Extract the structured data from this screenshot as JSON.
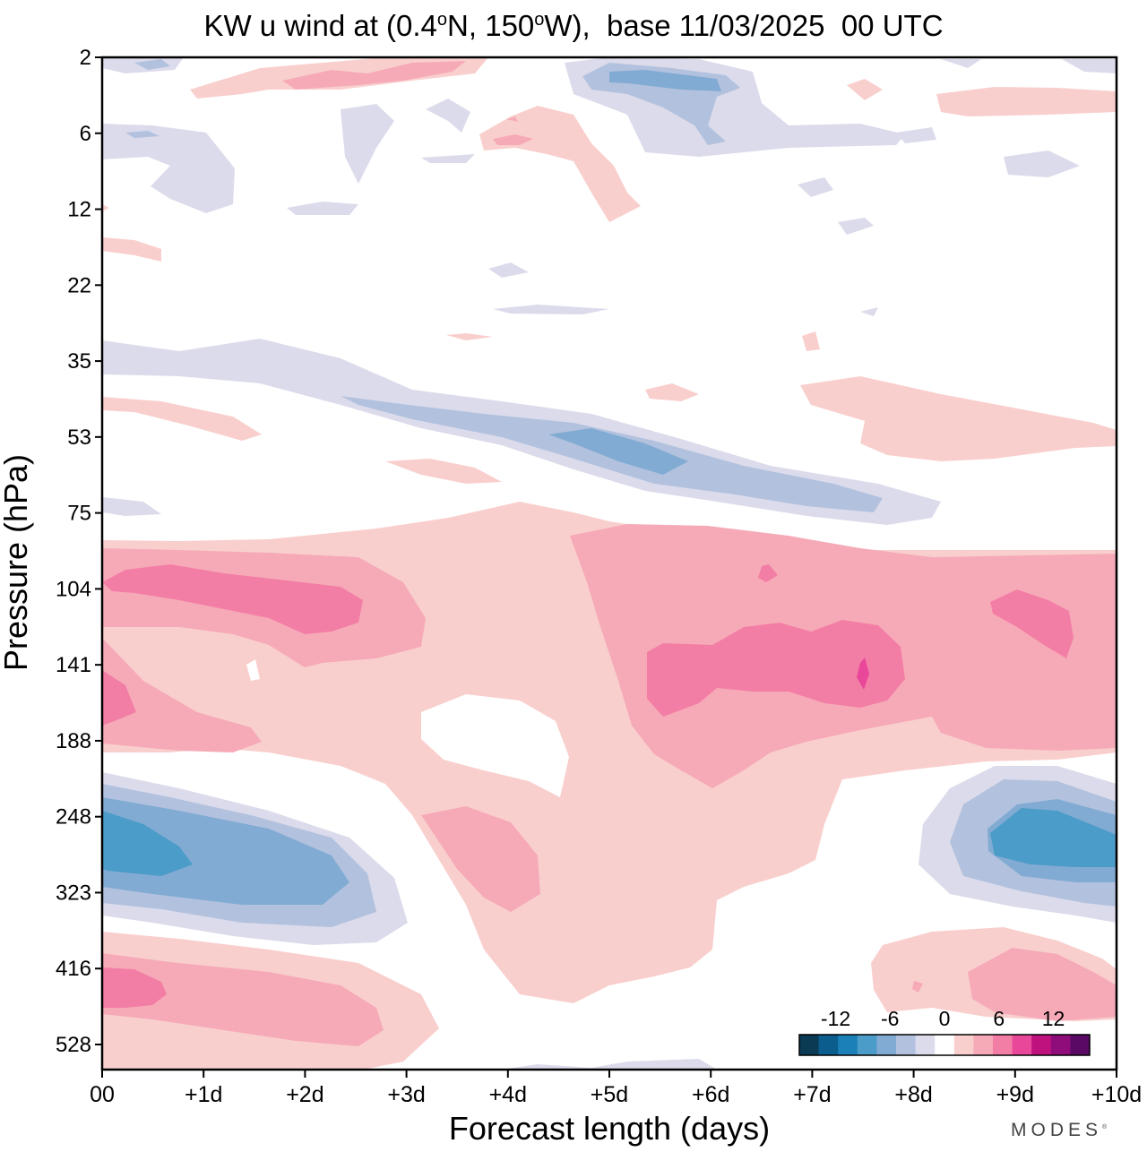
{
  "title": {
    "prefix": "KW u wind at (0.4",
    "deg1": "o",
    "mid": "N, 150",
    "deg2": "o",
    "suffix": "W),  base 11/03/2025  00 UTC"
  },
  "brand": {
    "name": "MODES",
    "mark": "®"
  },
  "chart_data": {
    "type": "heatmap",
    "xlabel": "Forecast length (days)",
    "ylabel": "Pressure (hPa)",
    "x_ticks": [
      "00",
      "+1d",
      "+2d",
      "+3d",
      "+4d",
      "+5d",
      "+6d",
      "+7d",
      "+8d",
      "+9d",
      "+10d"
    ],
    "y_ticks": [
      "2",
      "6",
      "12",
      "22",
      "35",
      "53",
      "75",
      "104",
      "141",
      "188",
      "248",
      "323",
      "416",
      "528"
    ],
    "xlim": [
      0,
      10
    ],
    "grid": false,
    "legend": {
      "position": "bottom-right",
      "tick_labels": [
        "-12",
        "-6",
        "0",
        "6",
        "12"
      ],
      "boundaries": [
        -16,
        -14,
        -12,
        -10,
        -8,
        -6,
        -4,
        -2,
        2,
        4,
        6,
        8,
        10,
        12,
        14,
        16
      ],
      "colors": [
        "#0b3a55",
        "#0a5d8c",
        "#1b80b8",
        "#4b9cc8",
        "#82abd3",
        "#b2c2de",
        "#dcdbeb",
        "#ffffff",
        "#f9cfcd",
        "#f6aab8",
        "#f37ea5",
        "#e8479a",
        "#c0127f",
        "#8f0d7a",
        "#5a0a65"
      ]
    },
    "features": [
      {
        "label": "low-level westerly core",
        "x_days": 0.6,
        "level_hPa": 470,
        "peak_ms": 8
      },
      {
        "label": "upper easterly core",
        "x_days": 0.5,
        "level_hPa": 280,
        "peak_ms": -9
      },
      {
        "label": "upper westerly core",
        "x_days": 1.5,
        "level_hPa": 110,
        "peak_ms": 8
      },
      {
        "label": "upper westerly core",
        "x_days": 7.5,
        "level_hPa": 141,
        "peak_ms": 10
      },
      {
        "label": "upper easterly core",
        "x_days": 9.4,
        "level_hPa": 270,
        "peak_ms": -8
      },
      {
        "label": "stratospheric easterly band",
        "x_days": 5.5,
        "level_hPa": 58,
        "peak_ms": -7
      },
      {
        "label": "low-level westerly core",
        "x_days": 9.5,
        "level_hPa": 450,
        "peak_ms": 6
      }
    ]
  }
}
